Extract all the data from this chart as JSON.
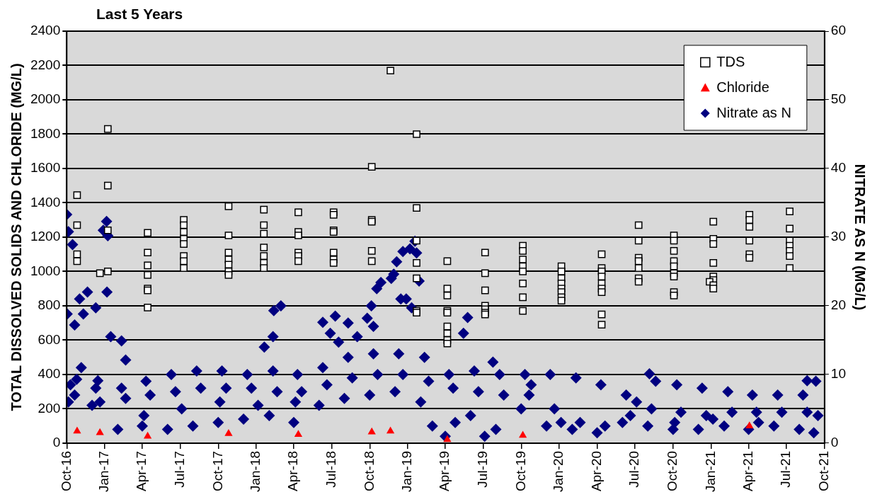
{
  "chart_data": {
    "type": "scatter",
    "title": "Last 5 Years",
    "ylabel": "TOTAL DISSOLVED SOLIDS AND CHLORIDE (MG/L)",
    "y2label": "NITRATE AS N (MG/L)",
    "xlim": [
      "2016-10",
      "2021-10"
    ],
    "xticks": [
      {
        "value": "2016-10",
        "label": "Oct-16"
      },
      {
        "value": "2017-01",
        "label": "Jan-17"
      },
      {
        "value": "2017-04",
        "label": "Apr-17"
      },
      {
        "value": "2017-07",
        "label": "Jul-17"
      },
      {
        "value": "2017-10",
        "label": "Oct-17"
      },
      {
        "value": "2018-01",
        "label": "Jan-18"
      },
      {
        "value": "2018-04",
        "label": "Apr-18"
      },
      {
        "value": "2018-07",
        "label": "Jul-18"
      },
      {
        "value": "2018-10",
        "label": "Oct-18"
      },
      {
        "value": "2019-01",
        "label": "Jan-19"
      },
      {
        "value": "2019-04",
        "label": "Apr-19"
      },
      {
        "value": "2019-07",
        "label": "Jul-19"
      },
      {
        "value": "2019-10",
        "label": "Oct-19"
      },
      {
        "value": "2020-01",
        "label": "Jan-20"
      },
      {
        "value": "2020-04",
        "label": "Apr-20"
      },
      {
        "value": "2020-07",
        "label": "Jul-20"
      },
      {
        "value": "2020-10",
        "label": "Oct-20"
      },
      {
        "value": "2021-01",
        "label": "Jan-21"
      },
      {
        "value": "2021-04",
        "label": "Apr-21"
      },
      {
        "value": "2021-07",
        "label": "Jul-21"
      },
      {
        "value": "2021-10",
        "label": "Oct-21"
      }
    ],
    "ylim": [
      0,
      2400
    ],
    "yticks": [
      0,
      200,
      400,
      600,
      800,
      1000,
      1200,
      1400,
      1600,
      1800,
      2000,
      2200,
      2400
    ],
    "y2lim": [
      0,
      60
    ],
    "y2ticks": [
      0,
      10,
      20,
      30,
      40,
      50,
      60
    ],
    "grid": "y",
    "legend": "top right",
    "series": [
      {
        "name": "TDS",
        "color": "#000000",
        "marker": "square",
        "x": [
          "2016-10-26",
          "2016-10-26",
          "2016-10-26",
          "2016-10-26",
          "2016-12-20",
          "2017-01-08",
          "2017-01-08",
          "2017-01-08",
          "2017-01-08",
          "2017-04-14",
          "2017-04-14",
          "2017-04-14",
          "2017-04-14",
          "2017-04-14",
          "2017-04-14",
          "2017-04-14",
          "2017-07-10",
          "2017-07-10",
          "2017-07-10",
          "2017-07-10",
          "2017-07-10",
          "2017-07-10",
          "2017-07-10",
          "2017-07-10",
          "2017-10-26",
          "2017-10-26",
          "2017-10-26",
          "2017-10-26",
          "2017-10-26",
          "2017-10-26",
          "2017-10-26",
          "2018-01-19",
          "2018-01-19",
          "2018-01-19",
          "2018-01-19",
          "2018-01-19",
          "2018-01-19",
          "2018-01-19",
          "2018-04-12",
          "2018-04-12",
          "2018-04-12",
          "2018-04-12",
          "2018-04-12",
          "2018-04-12",
          "2018-07-06",
          "2018-07-06",
          "2018-07-06",
          "2018-07-06",
          "2018-07-06",
          "2018-07-06",
          "2018-07-06",
          "2018-10-06",
          "2018-10-06",
          "2018-10-06",
          "2018-10-06",
          "2018-10-06",
          "2018-11-20",
          "2019-01-22",
          "2019-01-22",
          "2019-01-22",
          "2019-01-22",
          "2019-01-22",
          "2019-01-22",
          "2019-01-22",
          "2019-04-06",
          "2019-04-06",
          "2019-04-06",
          "2019-04-06",
          "2019-04-06",
          "2019-04-06",
          "2019-04-06",
          "2019-04-06",
          "2019-04-06",
          "2019-07-06",
          "2019-07-06",
          "2019-07-06",
          "2019-07-06",
          "2019-07-06",
          "2019-07-06",
          "2019-07-06",
          "2019-10-05",
          "2019-10-05",
          "2019-10-05",
          "2019-10-05",
          "2019-10-05",
          "2019-10-05",
          "2019-10-05",
          "2019-10-05",
          "2020-01-06",
          "2020-01-06",
          "2020-01-06",
          "2020-01-06",
          "2020-01-06",
          "2020-01-06",
          "2020-01-06",
          "2020-01-06",
          "2020-04-12",
          "2020-04-12",
          "2020-04-12",
          "2020-04-12",
          "2020-04-12",
          "2020-04-12",
          "2020-04-12",
          "2020-04-12",
          "2020-04-12",
          "2020-07-10",
          "2020-07-10",
          "2020-07-10",
          "2020-07-10",
          "2020-07-10",
          "2020-07-10",
          "2020-07-10",
          "2020-10-03",
          "2020-10-03",
          "2020-10-03",
          "2020-10-03",
          "2020-10-03",
          "2020-10-03",
          "2020-10-03",
          "2020-10-03",
          "2020-10-03",
          "2021-01-06",
          "2021-01-06",
          "2021-01-06",
          "2021-01-06",
          "2021-01-06",
          "2021-01-06",
          "2020-12-28",
          "2021-01-06",
          "2021-01-06",
          "2021-04-03",
          "2021-04-03",
          "2021-04-03",
          "2021-04-03",
          "2021-04-03",
          "2021-04-03",
          "2021-07-09",
          "2021-07-09",
          "2021-07-09",
          "2021-07-09",
          "2021-07-09",
          "2021-07-09",
          "2021-07-09"
        ],
        "values": [
          1445,
          1270,
          1100,
          1060,
          990,
          1830,
          1500,
          1240,
          1000,
          1225,
          1110,
          1035,
          980,
          900,
          890,
          790,
          1300,
          1270,
          1230,
          1190,
          1160,
          1090,
          1060,
          1020,
          1380,
          1210,
          1110,
          1070,
          1040,
          1000,
          980,
          1360,
          1270,
          1220,
          1140,
          1090,
          1050,
          1020,
          1345,
          1230,
          1210,
          1110,
          1090,
          1060,
          1345,
          1330,
          1240,
          1230,
          1110,
          1070,
          1050,
          1610,
          1300,
          1290,
          1120,
          1060,
          2170,
          1800,
          1370,
          1180,
          1050,
          960,
          770,
          760,
          1060,
          900,
          860,
          770,
          760,
          680,
          640,
          600,
          580,
          1110,
          990,
          890,
          800,
          780,
          760,
          750,
          1150,
          1120,
          1070,
          1030,
          1000,
          930,
          850,
          770,
          1030,
          1000,
          960,
          930,
          900,
          880,
          850,
          830,
          1100,
          1020,
          1000,
          970,
          930,
          900,
          880,
          750,
          690,
          1270,
          1180,
          1080,
          1060,
          1020,
          960,
          940,
          1210,
          1180,
          1120,
          1060,
          1030,
          990,
          970,
          880,
          860,
          1290,
          1190,
          1160,
          1050,
          970,
          950,
          940,
          920,
          900,
          1330,
          1300,
          1260,
          1180,
          1100,
          1080,
          1350,
          1250,
          1180,
          1150,
          1120,
          1090,
          1020
        ]
      },
      {
        "name": "Chloride",
        "color": "#ff0000",
        "marker": "triangle",
        "x": [
          "2016-10-26",
          "2016-12-20",
          "2017-04-14",
          "2017-10-26",
          "2018-04-12",
          "2018-10-06",
          "2018-11-20",
          "2019-04-06",
          "2019-10-05",
          "2021-04-03"
        ],
        "values": [
          70,
          60,
          40,
          55,
          50,
          65,
          70,
          20,
          45,
          100
        ]
      },
      {
        "name": "Nitrate as N",
        "color": "#000080",
        "marker": "diamond",
        "axis": "y2",
        "x": [
          "2016-10-01",
          "2016-10-05",
          "2016-10-15",
          "2016-10-02",
          "2016-10-20",
          "2016-11-01",
          "2016-11-20",
          "2016-11-10",
          "2016-12-10",
          "2016-12-28",
          "2017-01-05",
          "2017-01-08",
          "2017-01-06",
          "2017-01-15",
          "2017-02-10",
          "2017-02-20",
          "2016-11-05",
          "2016-10-25",
          "2016-12-15",
          "2018-01-20",
          "2018-02-12",
          "2018-03-01",
          "2018-02-10",
          "2018-06-10",
          "2018-06-28",
          "2018-07-10",
          "2018-07-18",
          "2018-08-10",
          "2018-09-01",
          "2018-09-25",
          "2018-10-05",
          "2018-10-10",
          "2018-10-18",
          "2018-10-28",
          "2018-11-22",
          "2018-11-28",
          "2018-12-20",
          "2019-01-06",
          "2019-01-18",
          "2019-01-22",
          "2019-01-28",
          "2018-12-15",
          "2018-12-28",
          "2019-01-10",
          "2018-12-05",
          "2019-05-25",
          "2019-05-15",
          "2019-07-25",
          "2020-08-05",
          "2021-08-20",
          "2016-10-10",
          "2016-12-10",
          "2017-02-10",
          "2017-04-10",
          "2017-06-10",
          "2017-08-10",
          "2017-10-10",
          "2017-12-10",
          "2018-02-10",
          "2018-04-10",
          "2018-06-10",
          "2018-08-10",
          "2018-10-10",
          "2018-12-10",
          "2019-02-10",
          "2019-04-10",
          "2019-06-10",
          "2019-08-10",
          "2019-10-10",
          "2019-12-10",
          "2020-02-10",
          "2020-04-10",
          "2020-06-10",
          "2020-08-20",
          "2020-10-10",
          "2020-12-10",
          "2021-02-10",
          "2021-04-10",
          "2021-06-10",
          "2021-08-10",
          "2021-09-10",
          "2016-10-20",
          "2016-12-20",
          "2017-02-20",
          "2017-04-20",
          "2017-06-20",
          "2017-08-20",
          "2017-10-20",
          "2017-12-20",
          "2018-02-20",
          "2018-04-20",
          "2018-06-20",
          "2018-08-20",
          "2018-10-20",
          "2018-12-20",
          "2019-02-20",
          "2019-04-20",
          "2019-06-20",
          "2019-08-20",
          "2019-10-20",
          "2019-12-20",
          "2020-02-20",
          "2020-04-20",
          "2020-06-20",
          "2020-08-10",
          "2020-10-20",
          "2020-12-20",
          "2021-02-20",
          "2021-04-20",
          "2021-06-20",
          "2021-08-20",
          "2021-09-15",
          "2016-10-05",
          "2016-12-01",
          "2017-02-01",
          "2017-04-01",
          "2017-06-01",
          "2017-08-01",
          "2017-10-01",
          "2017-12-01",
          "2018-02-01",
          "2018-04-01",
          "2018-06-01",
          "2018-08-01",
          "2018-10-01",
          "2018-12-01",
          "2019-02-01",
          "2019-03-01",
          "2019-04-01",
          "2019-06-01",
          "2019-08-01",
          "2019-10-01",
          "2019-12-01",
          "2020-02-01",
          "2020-04-01",
          "2020-06-01",
          "2020-08-01",
          "2020-10-01",
          "2020-12-01",
          "2021-02-01",
          "2021-04-01",
          "2021-06-01",
          "2021-08-01",
          "2021-09-05",
          "2017-04-05",
          "2017-07-05",
          "2017-10-05",
          "2018-01-05",
          "2018-04-05",
          "2019-04-25",
          "2019-07-05",
          "2019-10-25",
          "2020-01-05",
          "2020-07-05",
          "2020-10-05",
          "2021-01-05",
          "2021-04-25"
        ],
        "values": [
          33.3,
          30.8,
          28.9,
          18.8,
          17.2,
          21,
          22,
          18.8,
          19.7,
          31,
          32.3,
          30.2,
          22,
          15.5,
          14.9,
          12.1,
          11,
          9.3,
          9.1,
          14,
          19.3,
          20,
          15.5,
          17.6,
          16,
          18.5,
          14.7,
          17.5,
          15.5,
          18.2,
          20,
          17,
          22.5,
          23.4,
          24,
          24.6,
          27.9,
          28.3,
          29.4,
          27.7,
          23.6,
          21,
          21,
          19.7,
          26.4,
          18.3,
          16,
          11.8,
          10.1,
          9.1,
          8.5,
          8,
          8,
          9,
          10,
          10.5,
          10.5,
          10,
          10.5,
          10,
          11,
          12.5,
          13,
          13,
          12.5,
          10,
          10.5,
          10,
          10,
          10,
          9.5,
          8.5,
          7,
          9,
          8.5,
          8,
          7.5,
          7,
          7,
          7,
          9,
          7,
          6,
          6.5,
          7,
          7.5,
          8,
          8,
          8,
          7.5,
          7.5,
          8.5,
          9.5,
          10,
          10,
          9,
          8,
          7.5,
          7,
          7,
          5,
          3,
          2.5,
          4,
          5,
          4.5,
          4,
          4.5,
          4.5,
          4.5,
          4.5,
          4,
          6,
          5.5,
          2,
          2.5,
          2,
          2.5,
          3,
          3.5,
          4,
          3,
          5.5,
          6.5,
          7,
          7.5,
          6,
          2.5,
          1,
          4,
          2,
          5,
          2.5,
          2,
          1.5,
          3,
          2.5,
          2,
          2,
          2.5,
          2,
          2.5,
          2,
          1.5,
          4,
          5,
          6,
          5.5,
          6,
          3,
          1,
          8.5,
          3,
          6,
          3,
          3.5,
          3
        ]
      }
    ]
  }
}
